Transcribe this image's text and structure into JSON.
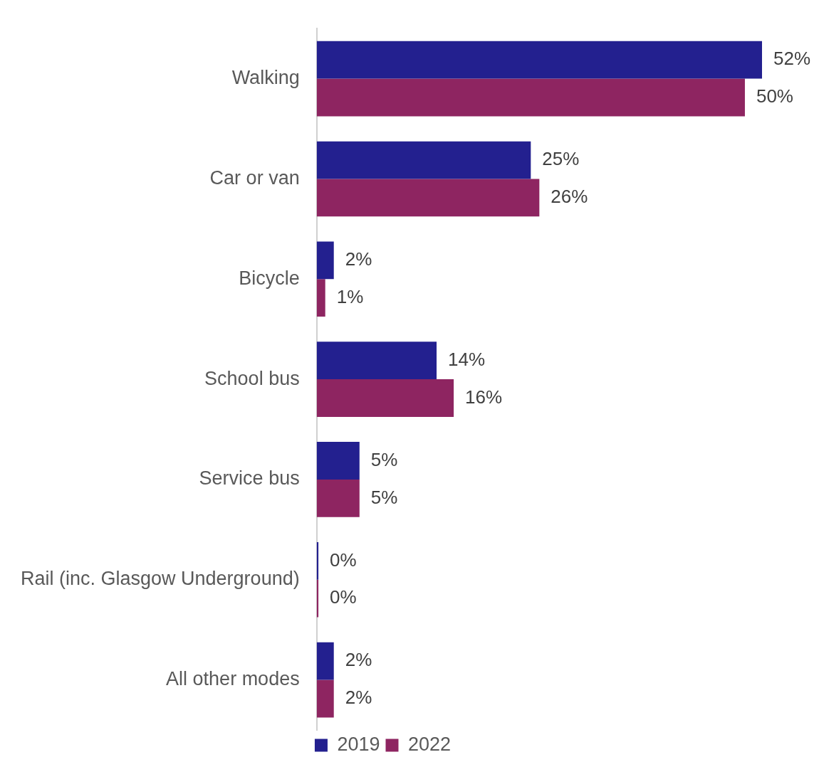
{
  "chart_data": {
    "type": "bar",
    "orientation": "horizontal",
    "categories": [
      "Walking",
      "Car or van",
      "Bicycle",
      "School bus",
      "Service bus",
      "Rail (inc. Glasgow Underground)",
      "All other modes"
    ],
    "series": [
      {
        "name": "2019",
        "color": "#23208f",
        "values": [
          52,
          25,
          2,
          14,
          5,
          0.2,
          2
        ],
        "value_labels": [
          "52%",
          "25%",
          "2%",
          "14%",
          "5%",
          "0%",
          "2%"
        ]
      },
      {
        "name": "2022",
        "color": "#8e2561",
        "values": [
          50,
          26,
          1,
          16,
          5,
          0.2,
          2
        ],
        "value_labels": [
          "50%",
          "26%",
          "1%",
          "16%",
          "5%",
          "0%",
          "2%"
        ]
      }
    ],
    "tick_labels": "y",
    "grid": false,
    "legend": "bottom"
  }
}
